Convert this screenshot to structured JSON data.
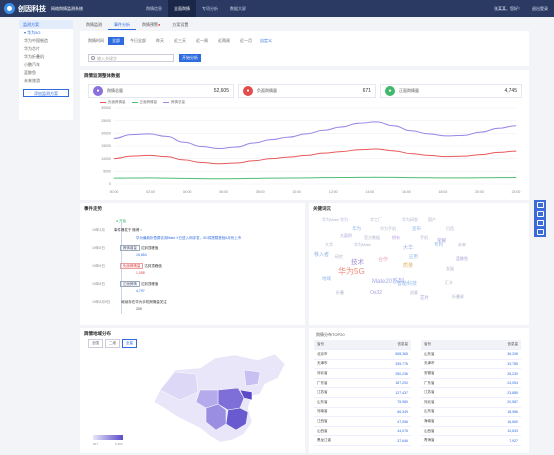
{
  "header": {
    "brand": "创因科技",
    "subtitle": "网络舆情监测系统",
    "nav": [
      "舆情信息",
      "全面舆情",
      "专项分析",
      "数据大屏"
    ],
    "nav_active": 1,
    "user": "张某某，您好！",
    "logout": "退出登录"
  },
  "sidebar": {
    "title": "监测方案",
    "items": [
      "▾ 华为5G",
      "华为中国制造",
      "华为芯片",
      "华为折叠机",
      "小鹏汽车",
      "蓝鲸鱼",
      "未来旅游"
    ],
    "selected": 0,
    "add": "添加监测方案"
  },
  "tabs": [
    "舆情监测",
    "事件分析",
    "舆情预警",
    "方案设置"
  ],
  "tabs_active": 1,
  "filters": {
    "label": "舆情时间",
    "options": [
      "全部",
      "今日全部",
      "昨天",
      "近三天",
      "近一周",
      "近两周",
      "近一月"
    ],
    "active": 0,
    "custom": "自定义"
  },
  "search": {
    "placeholder": "输入关键字",
    "button": "开始分析"
  },
  "overview": {
    "title": "舆情监测整体数据",
    "stats": [
      {
        "label": "舆情总量",
        "value": "52,605",
        "color": "#8b6fdc"
      },
      {
        "label": "负面舆情量",
        "value": "671",
        "color": "#e34b4b"
      },
      {
        "label": "正面舆情量",
        "value": "4,745",
        "color": "#42b86b"
      }
    ],
    "legend": [
      "负面舆情量",
      "正面舆情量",
      "舆情总量"
    ],
    "x_ticks": [
      "00:00",
      "02:00",
      "04:00",
      "06:00",
      "08:00",
      "10:00",
      "12:00",
      "14:00",
      "16:00",
      "18:00",
      "20:00",
      "23:00"
    ],
    "y_ticks": [
      "0",
      "5000",
      "10000",
      "15000",
      "20000",
      "25000",
      "30000"
    ]
  },
  "chart_data": {
    "type": "line",
    "x": [
      "00:00",
      "01:00",
      "02:00",
      "03:00",
      "04:00",
      "05:00",
      "06:00",
      "07:00",
      "08:00",
      "09:00",
      "10:00",
      "11:00",
      "12:00",
      "13:00",
      "14:00",
      "15:00",
      "16:00",
      "17:00",
      "18:00",
      "19:00",
      "20:00",
      "21:00",
      "22:00",
      "23:00"
    ],
    "ylim": [
      0,
      30000
    ],
    "series": [
      {
        "name": "舆情总量",
        "color": "#9b84e6",
        "values": [
          18000,
          19500,
          19800,
          18800,
          16500,
          14800,
          14000,
          14600,
          16200,
          17500,
          18500,
          19800,
          21200,
          22500,
          24000,
          24500,
          23000,
          21000,
          19800,
          19000,
          19200,
          20500,
          22000,
          23000
        ]
      },
      {
        "name": "负面舆情量",
        "color": "#e85a5a",
        "values": [
          10000,
          11000,
          11300,
          10800,
          9500,
          8500,
          8000,
          8300,
          9200,
          10000,
          10600,
          11300,
          12200,
          12800,
          13500,
          13800,
          13100,
          12000,
          11300,
          10800,
          11000,
          11600,
          12500,
          13000
        ]
      },
      {
        "name": "正面舆情量",
        "color": "#4dbf74",
        "values": [
          2300,
          2350,
          2400,
          2300,
          2200,
          2100,
          2050,
          2100,
          2200,
          2300,
          2350,
          2400,
          2500,
          2550,
          2600,
          2650,
          2600,
          2500,
          2450,
          2400,
          2400,
          2450,
          2500,
          2550
        ]
      }
    ]
  },
  "events": {
    "title": "事件走势",
    "items": [
      {
        "time": "",
        "tag": "",
        "text": "开始",
        "extra": ""
      },
      {
        "time": "19年2月",
        "tag": "",
        "text": "事件爆发于 微博",
        "extra": "华为最新折叠屏实测Mate X已进入网评发，5G将搭载首批6月份上市"
      },
      {
        "time": "19年6日",
        "tag": "舆情增量",
        "text": "达到顶峰值",
        "extra": "15,654"
      },
      {
        "time": "19年6日",
        "tag": "负面舆情量",
        "text": "达到顶峰值",
        "extra": "1,058"
      },
      {
        "time": "19年8日",
        "tag": "正面舆情",
        "text": "达到顶峰值",
        "extra": "4,797"
      },
      {
        "time": "19年8月9日",
        "tag": "",
        "text": "继续存在华为手机舆情量关注",
        "extra": "200"
      }
    ]
  },
  "keywords": {
    "title": "关键词云",
    "words": [
      {
        "t": "华为Mate",
        "c": "#b0b6cc",
        "s": 4
      },
      {
        "t": "华为",
        "c": "#c0a8e8",
        "s": 4
      },
      {
        "t": "华工厂",
        "c": "#b0b6cc",
        "s": 4
      },
      {
        "t": "华为研发",
        "c": "#b0b6cc",
        "s": 4
      },
      {
        "t": "国产",
        "c": "#b0b6cc",
        "s": 4
      },
      {
        "t": "华为",
        "c": "#8fb8e8",
        "s": 4.5
      },
      {
        "t": "华为手机",
        "c": "#b0b6cc",
        "s": 4
      },
      {
        "t": "宣布",
        "c": "#8fb8e8",
        "s": 4.5
      },
      {
        "t": "巴西",
        "c": "#b0b6cc",
        "s": 4
      },
      {
        "t": "大面积",
        "c": "#a8a0d8",
        "s": 4
      },
      {
        "t": "官方数据",
        "c": "#b0b6cc",
        "s": 4
      },
      {
        "t": "拥有",
        "c": "#c0a8e8",
        "s": 4
      },
      {
        "t": "手机",
        "c": "#b0b6cc",
        "s": 4
      },
      {
        "t": "荣耀",
        "c": "#a8a0d8",
        "s": 4.5
      },
      {
        "t": "大华",
        "c": "#b0b6cc",
        "s": 4
      },
      {
        "t": "华为Mate",
        "c": "#b0b6cc",
        "s": 4
      },
      {
        "t": "大华",
        "c": "#a0b0e0",
        "s": 5
      },
      {
        "t": "专利",
        "c": "#8fb8e8",
        "s": 4.5
      },
      {
        "t": "未来",
        "c": "#b0b6cc",
        "s": 4
      },
      {
        "t": "移入者",
        "c": "#8fb8e8",
        "s": 5
      },
      {
        "t": "研究",
        "c": "#b0b6cc",
        "s": 4
      },
      {
        "t": "技术",
        "c": "#a08ad6",
        "s": 6.5
      },
      {
        "t": "合作",
        "c": "#e8a0c0",
        "s": 5
      },
      {
        "t": "应用",
        "c": "#8fb8e8",
        "s": 4.5
      },
      {
        "t": "蓝鲸鱼",
        "c": "#a8a0d8",
        "s": 4
      },
      {
        "t": "华为5G",
        "c": "#f08a7a",
        "s": 8
      },
      {
        "t": "质量",
        "c": "#e0b870",
        "s": 5
      },
      {
        "t": "发展",
        "c": "#b0b6cc",
        "s": 4
      },
      {
        "t": "地域",
        "c": "#8fb8e8",
        "s": 4.5
      },
      {
        "t": "Mate20系列",
        "c": "#a0a8e8",
        "s": 6
      },
      {
        "t": "智能科技",
        "c": "#8fb8e8",
        "s": 5
      },
      {
        "t": "汇丰",
        "c": "#b0b6cc",
        "s": 4
      },
      {
        "t": "折叠",
        "c": "#b0b6cc",
        "s": 4
      },
      {
        "t": "Os32",
        "c": "#a8a0d8",
        "s": 5
      },
      {
        "t": "芯片",
        "c": "#a8a0d8",
        "s": 4.5
      },
      {
        "t": "创意",
        "c": "#b0b6cc",
        "s": 4
      },
      {
        "t": "折叠屏",
        "c": "#b0b6cc",
        "s": 4
      }
    ]
  },
  "map": {
    "title": "舆情地域分布",
    "buttons": [
      "全国",
      "二维",
      "全量"
    ],
    "active": 2,
    "legend_min": "827",
    "legend_max": "5,465"
  },
  "ranking": {
    "title": "舆情分布TOP20",
    "header": [
      "省份",
      "信息量"
    ],
    "left": [
      [
        "北京市",
        "508,365"
      ],
      [
        "天津市",
        "339,776"
      ],
      [
        "河北省",
        "250,236"
      ],
      [
        "广东省",
        "187,200"
      ],
      [
        "江苏省",
        "127,437"
      ],
      [
        "山东省",
        "75,980"
      ],
      [
        "河南省",
        "66,349"
      ],
      [
        "江西省",
        "47,056"
      ],
      [
        "山西省",
        "44,076"
      ],
      [
        "黑龙江省",
        "37,646"
      ]
    ],
    "right": [
      [
        "省份",
        "信息量"
      ],
      [
        "山东省",
        "36,208"
      ],
      [
        "天津市",
        "33,785"
      ],
      [
        "安徽省",
        "28,230"
      ],
      [
        "广东省",
        "24,054"
      ],
      [
        "江苏省",
        "23,885"
      ],
      [
        "河北省",
        "20,587"
      ],
      [
        "山东省",
        "18,986"
      ],
      [
        "海南省",
        "16,560"
      ],
      [
        "山西省",
        "10,633"
      ],
      [
        "青海省",
        "7,927"
      ]
    ]
  }
}
